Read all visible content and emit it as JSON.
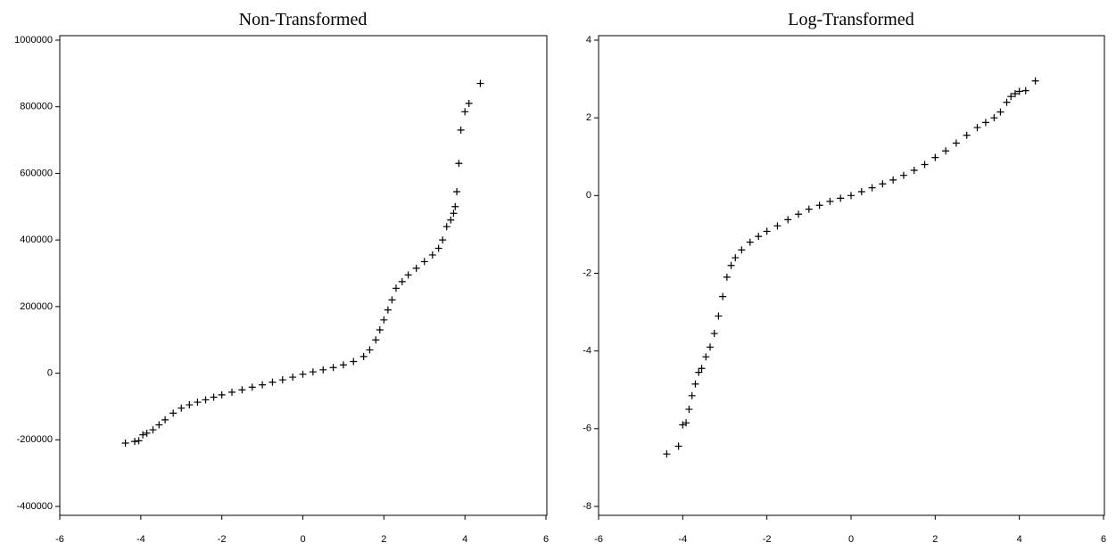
{
  "chart_data": [
    {
      "type": "scatter",
      "title": "Non-Transformed",
      "color": "#000000",
      "xlim": [
        -6,
        6
      ],
      "xticks": [
        -6,
        -4,
        -2,
        0,
        2,
        4,
        6
      ],
      "ylim": [
        -400000,
        1000000
      ],
      "yticks": [
        -400000,
        -200000,
        0,
        200000,
        400000,
        600000,
        800000,
        1000000
      ],
      "x": [
        -4.38,
        -4.15,
        -4.05,
        -3.95,
        -3.85,
        -3.7,
        -3.55,
        -3.4,
        -3.2,
        -3.0,
        -2.8,
        -2.6,
        -2.4,
        -2.2,
        -2.0,
        -1.75,
        -1.5,
        -1.25,
        -1,
        -0.75,
        -0.5,
        -0.25,
        0,
        0.25,
        0.5,
        0.75,
        1.0,
        1.25,
        1.5,
        1.65,
        1.8,
        1.9,
        2.0,
        2.1,
        2.2,
        2.3,
        2.45,
        2.6,
        2.8,
        3.0,
        3.2,
        3.35,
        3.45,
        3.55,
        3.65,
        3.72,
        3.76,
        3.8,
        3.85,
        3.9,
        4.0,
        4.1,
        4.38
      ],
      "values": [
        -210000,
        -205000,
        -203000,
        -185000,
        -180000,
        -170000,
        -155000,
        -140000,
        -120000,
        -105000,
        -95000,
        -87000,
        -80000,
        -72000,
        -65000,
        -57000,
        -50000,
        -42000,
        -35000,
        -27000,
        -20000,
        -12000,
        -3000,
        4000,
        10000,
        17000,
        25000,
        35000,
        50000,
        70000,
        100000,
        130000,
        160000,
        190000,
        220000,
        255000,
        275000,
        295000,
        315000,
        335000,
        355000,
        375000,
        400000,
        440000,
        460000,
        480000,
        500000,
        545000,
        630000,
        730000,
        785000,
        810000,
        870000
      ]
    },
    {
      "type": "scatter",
      "title": "Log-Transformed",
      "color": "#000000",
      "xlim": [
        -6,
        6
      ],
      "xticks": [
        -6,
        -4,
        -2,
        0,
        2,
        4,
        6
      ],
      "ylim": [
        -8,
        4
      ],
      "yticks": [
        -8,
        -6,
        -4,
        -2,
        0,
        2,
        4
      ],
      "x": [
        -4.38,
        -4.1,
        -4.0,
        -3.92,
        -3.85,
        -3.78,
        -3.7,
        -3.62,
        -3.55,
        -3.45,
        -3.35,
        -3.25,
        -3.15,
        -3.05,
        -2.95,
        -2.85,
        -2.75,
        -2.6,
        -2.4,
        -2.2,
        -2.0,
        -1.75,
        -1.5,
        -1.25,
        -1,
        -0.75,
        -0.5,
        -0.25,
        0,
        0.25,
        0.5,
        0.75,
        1,
        1.25,
        1.5,
        1.75,
        2,
        2.25,
        2.5,
        2.75,
        3,
        3.2,
        3.4,
        3.55,
        3.7,
        3.8,
        3.9,
        4.0,
        4.15,
        4.38
      ],
      "values": [
        -6.65,
        -6.45,
        -5.9,
        -5.85,
        -5.5,
        -5.15,
        -4.85,
        -4.55,
        -4.45,
        -4.15,
        -3.9,
        -3.55,
        -3.1,
        -2.6,
        -2.1,
        -1.8,
        -1.6,
        -1.4,
        -1.2,
        -1.05,
        -0.92,
        -0.78,
        -0.62,
        -0.48,
        -0.35,
        -0.25,
        -0.15,
        -0.07,
        0,
        0.1,
        0.2,
        0.3,
        0.4,
        0.52,
        0.65,
        0.8,
        0.98,
        1.15,
        1.35,
        1.55,
        1.75,
        1.88,
        2.0,
        2.15,
        2.4,
        2.55,
        2.62,
        2.68,
        2.7,
        2.95
      ]
    }
  ]
}
